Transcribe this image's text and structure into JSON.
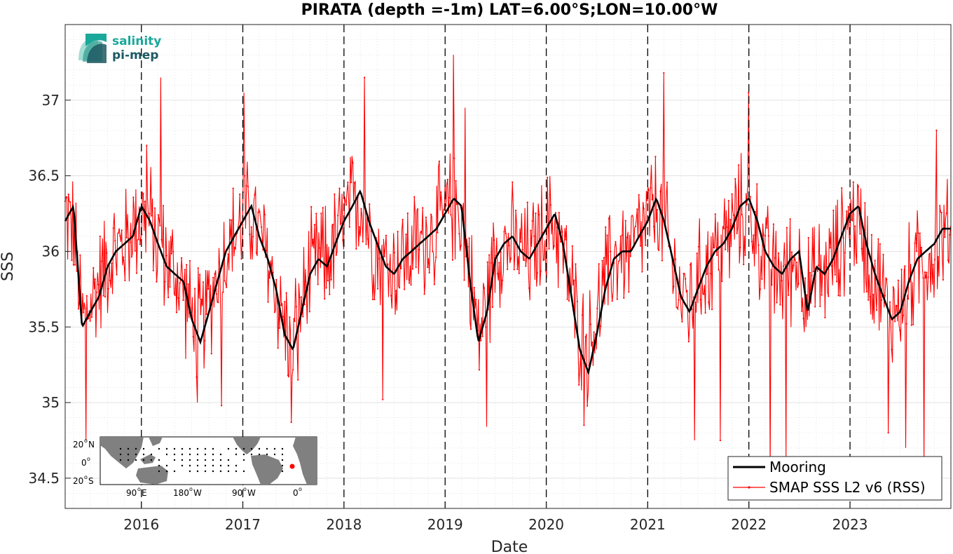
{
  "chart_data": {
    "type": "line",
    "title": "PIRATA (depth =-1m) LAT=6.00°S;LON=10.00°W",
    "xlabel": "Date",
    "ylabel": "SSS",
    "xlim": [
      "2015-04-01",
      "2023-12-31"
    ],
    "ylim": [
      34.3,
      37.5
    ],
    "x_ticks": [
      "2016",
      "2017",
      "2018",
      "2019",
      "2020",
      "2021",
      "2022",
      "2023"
    ],
    "x_tick_dates": [
      "2016-01-01",
      "2017-01-01",
      "2018-01-01",
      "2019-01-01",
      "2020-01-01",
      "2021-01-01",
      "2022-01-01",
      "2023-01-01"
    ],
    "y_ticks": [
      34.5,
      35,
      35.5,
      36,
      36.5,
      37
    ],
    "y_tick_labels": [
      "34.5",
      "35",
      "35.5",
      "36",
      "36.5",
      "37"
    ],
    "grid": true,
    "year_markers_dashed": true,
    "legend_position": "bottom-right",
    "legend": [
      "Mooring",
      "SMAP SSS L2 v6 (RSS)"
    ],
    "series": [
      {
        "name": "Mooring",
        "color": "#000000",
        "points": [
          [
            "2015-04-01",
            36.2
          ],
          [
            "2015-05-01",
            36.3
          ],
          [
            "2015-06-01",
            35.5
          ],
          [
            "2015-07-01",
            35.6
          ],
          [
            "2015-08-01",
            35.7
          ],
          [
            "2015-09-01",
            35.9
          ],
          [
            "2015-10-01",
            36.0
          ],
          [
            "2015-11-01",
            36.05
          ],
          [
            "2015-12-01",
            36.1
          ],
          [
            "2016-01-01",
            36.3
          ],
          [
            "2016-02-01",
            36.2
          ],
          [
            "2016-03-01",
            36.05
          ],
          [
            "2016-04-01",
            35.9
          ],
          [
            "2016-05-01",
            35.85
          ],
          [
            "2016-06-01",
            35.8
          ],
          [
            "2016-07-01",
            35.55
          ],
          [
            "2016-08-01",
            35.4
          ],
          [
            "2016-09-01",
            35.6
          ],
          [
            "2016-10-01",
            35.8
          ],
          [
            "2016-11-01",
            36.0
          ],
          [
            "2016-12-01",
            36.1
          ],
          [
            "2017-01-01",
            36.2
          ],
          [
            "2017-02-01",
            36.3
          ],
          [
            "2017-03-01",
            36.1
          ],
          [
            "2017-04-01",
            35.95
          ],
          [
            "2017-05-01",
            35.75
          ],
          [
            "2017-06-01",
            35.45
          ],
          [
            "2017-07-01",
            35.35
          ],
          [
            "2017-08-01",
            35.6
          ],
          [
            "2017-09-01",
            35.85
          ],
          [
            "2017-10-01",
            35.95
          ],
          [
            "2017-11-01",
            35.9
          ],
          [
            "2017-12-01",
            36.05
          ],
          [
            "2018-01-01",
            36.2
          ],
          [
            "2018-02-01",
            36.3
          ],
          [
            "2018-03-01",
            36.4
          ],
          [
            "2018-04-01",
            36.2
          ],
          [
            "2018-05-01",
            36.05
          ],
          [
            "2018-06-01",
            35.9
          ],
          [
            "2018-07-01",
            35.85
          ],
          [
            "2018-08-01",
            35.95
          ],
          [
            "2018-09-01",
            36.0
          ],
          [
            "2018-10-01",
            36.05
          ],
          [
            "2018-11-01",
            36.1
          ],
          [
            "2018-12-01",
            36.15
          ],
          [
            "2019-01-01",
            36.25
          ],
          [
            "2019-02-01",
            36.35
          ],
          [
            "2019-03-01",
            36.3
          ],
          [
            "2019-04-01",
            35.8
          ],
          [
            "2019-05-01",
            35.4
          ],
          [
            "2019-06-01",
            35.6
          ],
          [
            "2019-07-01",
            35.95
          ],
          [
            "2019-08-01",
            36.05
          ],
          [
            "2019-09-01",
            36.1
          ],
          [
            "2019-10-01",
            36.0
          ],
          [
            "2019-11-01",
            35.95
          ],
          [
            "2019-12-01",
            36.05
          ],
          [
            "2020-01-01",
            36.15
          ],
          [
            "2020-02-01",
            36.25
          ],
          [
            "2020-03-01",
            36.05
          ],
          [
            "2020-04-01",
            35.7
          ],
          [
            "2020-05-01",
            35.35
          ],
          [
            "2020-06-01",
            35.2
          ],
          [
            "2020-07-01",
            35.45
          ],
          [
            "2020-08-01",
            35.75
          ],
          [
            "2020-09-01",
            35.95
          ],
          [
            "2020-10-01",
            36.0
          ],
          [
            "2020-11-01",
            36.0
          ],
          [
            "2020-12-01",
            36.1
          ],
          [
            "2021-01-01",
            36.2
          ],
          [
            "2021-02-01",
            36.35
          ],
          [
            "2021-03-01",
            36.2
          ],
          [
            "2021-04-01",
            35.95
          ],
          [
            "2021-05-01",
            35.7
          ],
          [
            "2021-06-01",
            35.6
          ],
          [
            "2021-07-01",
            35.75
          ],
          [
            "2021-08-01",
            35.9
          ],
          [
            "2021-09-01",
            36.0
          ],
          [
            "2021-10-01",
            36.05
          ],
          [
            "2021-11-01",
            36.15
          ],
          [
            "2021-12-01",
            36.3
          ],
          [
            "2022-01-01",
            36.35
          ],
          [
            "2022-02-01",
            36.2
          ],
          [
            "2022-03-01",
            36.0
          ],
          [
            "2022-04-01",
            35.9
          ],
          [
            "2022-05-01",
            35.85
          ],
          [
            "2022-06-01",
            35.95
          ],
          [
            "2022-07-01",
            36.0
          ],
          [
            "2022-08-01",
            35.6
          ],
          [
            "2022-09-01",
            35.9
          ],
          [
            "2022-10-01",
            35.85
          ],
          [
            "2022-11-01",
            35.95
          ],
          [
            "2022-12-01",
            36.1
          ],
          [
            "2023-01-01",
            36.25
          ],
          [
            "2023-02-01",
            36.3
          ],
          [
            "2023-03-01",
            36.05
          ],
          [
            "2023-04-01",
            35.85
          ],
          [
            "2023-05-01",
            35.7
          ],
          [
            "2023-06-01",
            35.55
          ],
          [
            "2023-07-01",
            35.6
          ],
          [
            "2023-08-01",
            35.8
          ],
          [
            "2023-09-01",
            35.95
          ],
          [
            "2023-10-01",
            36.0
          ],
          [
            "2023-11-01",
            36.05
          ],
          [
            "2023-12-01",
            36.15
          ]
        ]
      },
      {
        "name": "SMAP SSS L2 v6 (RSS)",
        "color": "#ff0000",
        "mean": [
          [
            "2015-04-01",
            36.25
          ],
          [
            "2015-05-01",
            36.15
          ],
          [
            "2015-06-01",
            35.55
          ],
          [
            "2015-07-01",
            35.65
          ],
          [
            "2015-08-01",
            35.8
          ],
          [
            "2015-09-01",
            35.95
          ],
          [
            "2015-10-01",
            36.0
          ],
          [
            "2015-11-01",
            36.05
          ],
          [
            "2015-12-01",
            36.15
          ],
          [
            "2016-01-01",
            36.25
          ],
          [
            "2016-02-01",
            36.2
          ],
          [
            "2016-03-01",
            36.05
          ],
          [
            "2016-04-01",
            35.95
          ],
          [
            "2016-05-01",
            35.85
          ],
          [
            "2016-06-01",
            35.75
          ],
          [
            "2016-07-01",
            35.55
          ],
          [
            "2016-08-01",
            35.5
          ],
          [
            "2016-09-01",
            35.65
          ],
          [
            "2016-10-01",
            35.85
          ],
          [
            "2016-11-01",
            36.0
          ],
          [
            "2016-12-01",
            36.1
          ],
          [
            "2017-01-01",
            36.2
          ],
          [
            "2017-02-01",
            36.25
          ],
          [
            "2017-03-01",
            36.1
          ],
          [
            "2017-04-01",
            35.95
          ],
          [
            "2017-05-01",
            35.75
          ],
          [
            "2017-06-01",
            35.5
          ],
          [
            "2017-07-01",
            35.4
          ],
          [
            "2017-08-01",
            35.65
          ],
          [
            "2017-09-01",
            35.85
          ],
          [
            "2017-10-01",
            35.95
          ],
          [
            "2017-11-01",
            35.95
          ],
          [
            "2017-12-01",
            36.05
          ],
          [
            "2018-01-01",
            36.2
          ],
          [
            "2018-02-01",
            36.3
          ],
          [
            "2018-03-01",
            36.35
          ],
          [
            "2018-04-01",
            36.15
          ],
          [
            "2018-05-01",
            36.0
          ],
          [
            "2018-06-01",
            35.9
          ],
          [
            "2018-07-01",
            35.9
          ],
          [
            "2018-08-01",
            35.95
          ],
          [
            "2018-09-01",
            36.0
          ],
          [
            "2018-10-01",
            36.05
          ],
          [
            "2018-11-01",
            36.1
          ],
          [
            "2018-12-01",
            36.15
          ],
          [
            "2019-01-01",
            36.25
          ],
          [
            "2019-02-01",
            36.3
          ],
          [
            "2019-03-01",
            36.25
          ],
          [
            "2019-04-01",
            35.85
          ],
          [
            "2019-05-01",
            35.45
          ],
          [
            "2019-06-01",
            35.65
          ],
          [
            "2019-07-01",
            36.0
          ],
          [
            "2019-08-01",
            36.05
          ],
          [
            "2019-09-01",
            36.05
          ],
          [
            "2019-10-01",
            36.0
          ],
          [
            "2019-11-01",
            35.95
          ],
          [
            "2019-12-01",
            36.05
          ],
          [
            "2020-01-01",
            36.15
          ],
          [
            "2020-02-01",
            36.2
          ],
          [
            "2020-03-01",
            36.0
          ],
          [
            "2020-04-01",
            35.75
          ],
          [
            "2020-05-01",
            35.45
          ],
          [
            "2020-06-01",
            35.35
          ],
          [
            "2020-07-01",
            35.55
          ],
          [
            "2020-08-01",
            35.8
          ],
          [
            "2020-09-01",
            35.95
          ],
          [
            "2020-10-01",
            36.0
          ],
          [
            "2020-11-01",
            36.0
          ],
          [
            "2020-12-01",
            36.1
          ],
          [
            "2021-01-01",
            36.2
          ],
          [
            "2021-02-01",
            36.3
          ],
          [
            "2021-03-01",
            36.15
          ],
          [
            "2021-04-01",
            35.9
          ],
          [
            "2021-05-01",
            35.7
          ],
          [
            "2021-06-01",
            35.65
          ],
          [
            "2021-07-01",
            35.8
          ],
          [
            "2021-08-01",
            35.9
          ],
          [
            "2021-09-01",
            36.0
          ],
          [
            "2021-10-01",
            36.05
          ],
          [
            "2021-11-01",
            36.15
          ],
          [
            "2021-12-01",
            36.25
          ],
          [
            "2022-01-01",
            36.25
          ],
          [
            "2022-02-01",
            36.1
          ],
          [
            "2022-03-01",
            35.95
          ],
          [
            "2022-04-01",
            35.85
          ],
          [
            "2022-05-01",
            35.85
          ],
          [
            "2022-06-01",
            35.9
          ],
          [
            "2022-07-01",
            35.95
          ],
          [
            "2022-08-01",
            35.7
          ],
          [
            "2022-09-01",
            35.85
          ],
          [
            "2022-10-01",
            35.85
          ],
          [
            "2022-11-01",
            35.95
          ],
          [
            "2022-12-01",
            36.05
          ],
          [
            "2023-01-01",
            36.2
          ],
          [
            "2023-02-01",
            36.2
          ],
          [
            "2023-03-01",
            36.0
          ],
          [
            "2023-04-01",
            35.85
          ],
          [
            "2023-05-01",
            35.7
          ],
          [
            "2023-06-01",
            35.6
          ],
          [
            "2023-07-01",
            35.65
          ],
          [
            "2023-08-01",
            35.8
          ],
          [
            "2023-09-01",
            35.9
          ],
          [
            "2023-10-01",
            35.95
          ],
          [
            "2023-11-01",
            36.0
          ],
          [
            "2023-12-01",
            36.1
          ]
        ],
        "spread": 0.3,
        "extremes": [
          [
            "2015-06-15",
            34.75
          ],
          [
            "2016-01-20",
            36.7
          ],
          [
            "2016-03-10",
            37.15
          ],
          [
            "2016-07-20",
            35.0
          ],
          [
            "2016-10-15",
            34.98
          ],
          [
            "2017-01-05",
            37.05
          ],
          [
            "2017-06-25",
            34.87
          ],
          [
            "2017-07-20",
            35.15
          ],
          [
            "2018-03-15",
            37.15
          ],
          [
            "2018-05-20",
            35.02
          ],
          [
            "2019-02-01",
            37.3
          ],
          [
            "2019-03-15",
            36.95
          ],
          [
            "2019-06-01",
            34.84
          ],
          [
            "2020-05-15",
            34.85
          ],
          [
            "2021-03-01",
            37.18
          ],
          [
            "2021-06-20",
            34.75
          ],
          [
            "2021-09-20",
            34.75
          ],
          [
            "2022-01-01",
            37.05
          ],
          [
            "2022-03-20",
            34.52
          ],
          [
            "2022-05-15",
            34.62
          ],
          [
            "2023-05-20",
            34.8
          ],
          [
            "2023-07-20",
            34.7
          ],
          [
            "2023-09-25",
            34.6
          ],
          [
            "2023-11-10",
            36.8
          ]
        ]
      }
    ]
  },
  "logo": {
    "line1": "salinity",
    "line2": "pi-mep",
    "color1": "#1aa89a",
    "color2": "#1d5a63"
  },
  "inset_map": {
    "lat_labels": [
      "20",
      "N",
      "0",
      "",
      "20",
      "S"
    ],
    "lon_labels": [
      "90",
      "E",
      "180",
      "W",
      "90",
      "W",
      "0",
      ""
    ],
    "land_color": "#808080",
    "ocean_color": "#ffffff",
    "marker_color": "#ff0000"
  }
}
